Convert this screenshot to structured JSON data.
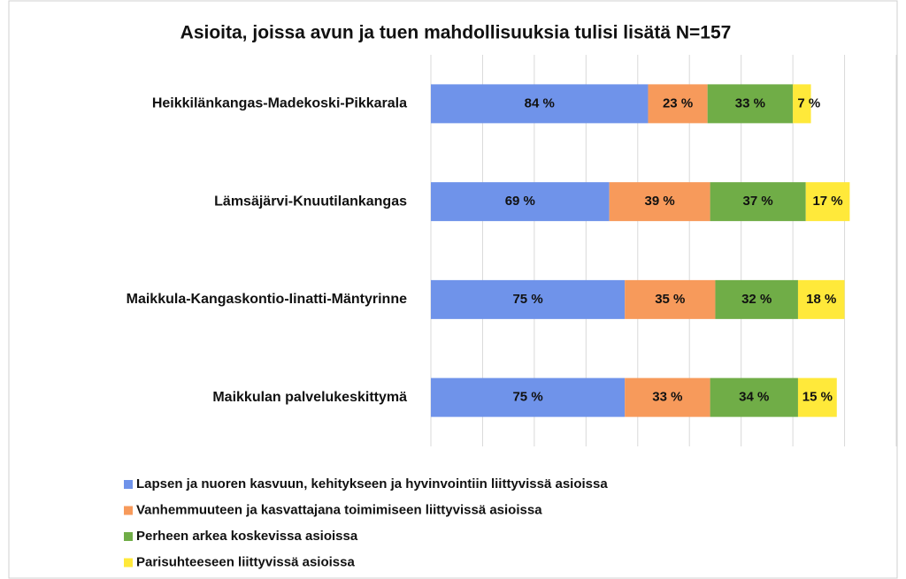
{
  "chart_data": {
    "type": "stacked-bar-horizontal",
    "title": "Asioita, joissa avun ja tuen mahdollisuuksia tulisi lisätä N=157",
    "categories": [
      "Heikkilänkangas-Madekoski-Pikkarala",
      "Lämsäjärvi-Knuutilankangas",
      "Maikkula-Kangaskontio-Iinatti-Mäntyrinne",
      "Maikkulan palvelukeskittymä"
    ],
    "series": [
      {
        "name": "Lapsen ja nuoren kasvuun, kehitykseen ja hyvinvointiin liittyvissä asioissa",
        "color": "#6f93ea",
        "values": [
          84,
          69,
          75,
          75
        ],
        "value_labels": [
          "84 %",
          "69 %",
          "75 %",
          "75 %"
        ]
      },
      {
        "name": "Vanhemmuuteen ja kasvattajana toimimiseen liittyvissä asioissa",
        "color": "#f79a5b",
        "values": [
          23,
          39,
          35,
          33
        ],
        "value_labels": [
          "23 %",
          "39 %",
          "35 %",
          "33 %"
        ]
      },
      {
        "name": "Perheen arkea koskevissa asioissa",
        "color": "#70ad47",
        "values": [
          33,
          37,
          32,
          34
        ],
        "value_labels": [
          "33 %",
          "37 %",
          "32 %",
          "34 %"
        ]
      },
      {
        "name": "Parisuhteeseen liittyvissä asioissa",
        "color": "#ffe93a",
        "values": [
          7,
          17,
          18,
          15
        ],
        "value_labels": [
          "7 %",
          "17 %",
          "18 %",
          "15 %"
        ]
      }
    ],
    "xlim": [
      0,
      180
    ],
    "xticks": [
      0,
      20,
      40,
      60,
      80,
      100,
      120,
      140,
      160,
      180
    ],
    "grid": true
  }
}
